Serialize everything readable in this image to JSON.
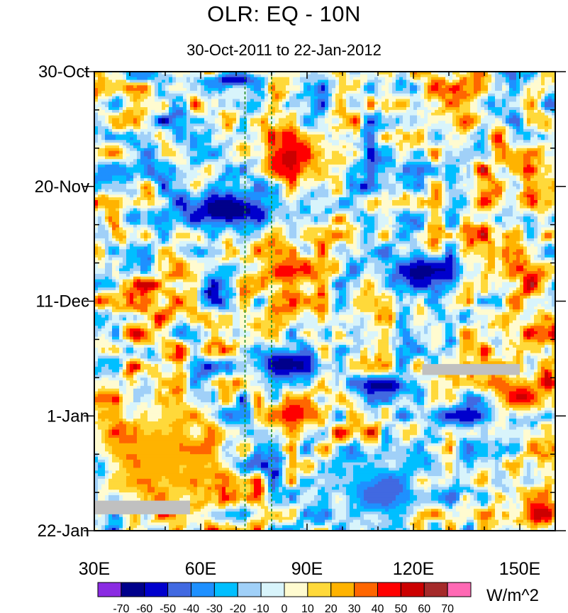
{
  "chart_data": {
    "type": "heatmap",
    "title": "OLR: EQ - 10N",
    "subtitle": "30-Oct-2011 to 22-Jan-2012",
    "x_axis": {
      "range": [
        30,
        160
      ],
      "ticks": [
        30,
        60,
        90,
        120,
        150
      ],
      "tick_labels": [
        "30E",
        "60E",
        "90E",
        "120E",
        "150E"
      ]
    },
    "y_axis": {
      "range_days": [
        0,
        84
      ],
      "ticks": [
        0,
        21,
        42,
        63,
        84
      ],
      "tick_labels": [
        "30-Oct",
        "20-Nov",
        "11-Dec",
        "1-Jan",
        "22-Jan"
      ],
      "direction": "time increases downward"
    },
    "reference_lines": [
      {
        "longitude": 72.5,
        "style": "dashed",
        "color": "#1f8a1f"
      },
      {
        "longitude": 80,
        "style": "dashed",
        "color": "#1f8a1f"
      }
    ],
    "colorbar": {
      "units": "W/m^2",
      "levels": [
        -70,
        -60,
        -50,
        -40,
        -30,
        -20,
        -10,
        0,
        10,
        20,
        30,
        40,
        50,
        60,
        70
      ],
      "labels": [
        "-70",
        "-60",
        "-50",
        "-40",
        "-30",
        "-20",
        "-10",
        "0",
        "10",
        "20",
        "30",
        "40",
        "50",
        "60",
        "70"
      ],
      "colors": [
        "#8a2be2",
        "#00008b",
        "#0000cd",
        "#4169e1",
        "#1e90ff",
        "#00bfff",
        "#a0d0f8",
        "#d8f4fb",
        "#fffbd0",
        "#ffd93a",
        "#ffb300",
        "#ff6600",
        "#ff0000",
        "#cc0000",
        "#a52a2a",
        "#ff69b4"
      ]
    },
    "missing_color": "#c0c0c0",
    "anomaly_features": [
      {
        "lon_min": 48,
        "lon_max": 88,
        "day_min": 21,
        "day_max": 30,
        "value": -70,
        "note": "strong convection"
      },
      {
        "lon_min": 77,
        "lon_max": 94,
        "day_min": 11,
        "day_max": 20,
        "value": 55,
        "note": "suppressed"
      },
      {
        "lon_min": 74,
        "lon_max": 93,
        "day_min": 33,
        "day_max": 40,
        "value": 50,
        "note": "suppressed"
      },
      {
        "lon_min": 108,
        "lon_max": 137,
        "day_min": 33,
        "day_max": 40,
        "value": -65,
        "note": "convection"
      },
      {
        "lon_min": 72,
        "lon_max": 96,
        "day_min": 50,
        "day_max": 57,
        "value": -68,
        "note": "convection"
      },
      {
        "lon_min": 102,
        "lon_max": 122,
        "day_min": 55,
        "day_max": 60,
        "value": -66,
        "note": "convection"
      },
      {
        "lon_min": 78,
        "lon_max": 95,
        "day_min": 59,
        "day_max": 66,
        "value": 48,
        "note": "suppressed"
      },
      {
        "lon_min": 141,
        "lon_max": 160,
        "day_min": 56,
        "day_max": 63,
        "value": 52,
        "note": "suppressed"
      },
      {
        "lon_min": 125,
        "lon_max": 145,
        "day_min": 61,
        "day_max": 65,
        "value": -60,
        "note": "convection"
      },
      {
        "lon_min": 150,
        "lon_max": 160,
        "day_min": 78,
        "day_max": 84,
        "value": 55,
        "note": "suppressed"
      },
      {
        "lon_min": 30,
        "lon_max": 70,
        "day_min": 60,
        "day_max": 80,
        "value": 28,
        "note": "dry band"
      },
      {
        "lon_min": 95,
        "lon_max": 125,
        "day_min": 70,
        "day_max": 84,
        "value": -45,
        "note": "convection"
      },
      {
        "lon_min": 60,
        "lon_max": 78,
        "day_min": 0,
        "day_max": 3,
        "value": -60,
        "note": "convection"
      }
    ],
    "missing_regions": [
      {
        "lon_min": 30,
        "lon_max": 57,
        "day_min": 78.5,
        "day_max": 81
      },
      {
        "lon_min": 122.5,
        "lon_max": 150,
        "day_min": 53.5,
        "day_max": 55.5
      }
    ]
  }
}
